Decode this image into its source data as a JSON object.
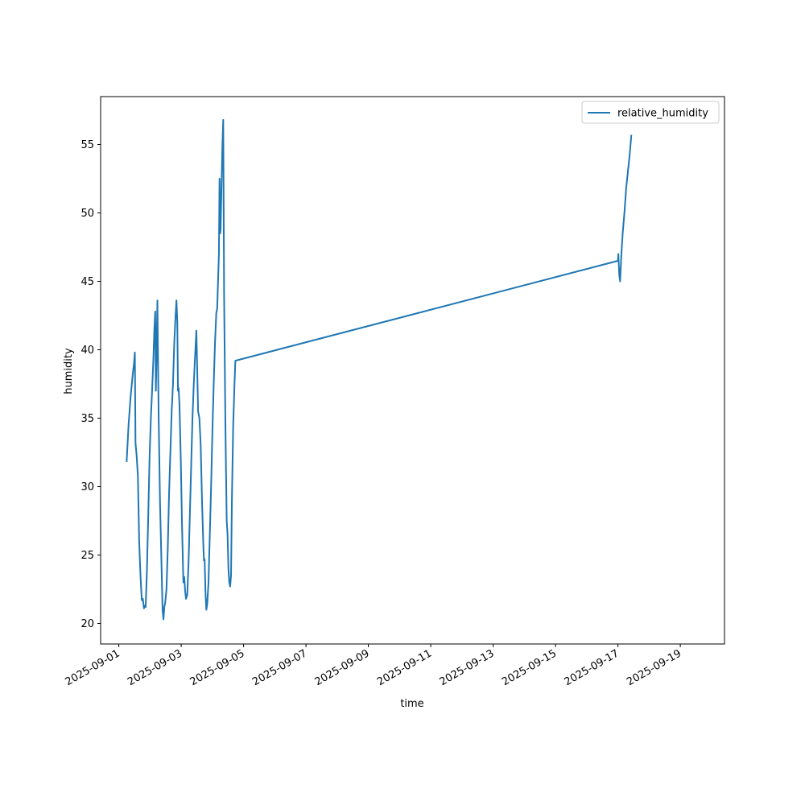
{
  "chart_data": {
    "type": "line",
    "title": "",
    "xlabel": "time",
    "ylabel": "humidity",
    "xlim": [
      "2025-08-31T10:00",
      "2025-09-20T10:00"
    ],
    "ylim": [
      18.5,
      58.5
    ],
    "grid": false,
    "legend": {
      "placement": "top-right"
    },
    "x_ticks": [
      "2025-09-01",
      "2025-09-03",
      "2025-09-05",
      "2025-09-07",
      "2025-09-09",
      "2025-09-11",
      "2025-09-13",
      "2025-09-15",
      "2025-09-17",
      "2025-09-19"
    ],
    "y_ticks": [
      20,
      25,
      30,
      35,
      40,
      45,
      50,
      55
    ],
    "series": [
      {
        "name": "relative_humidity",
        "color": "#1f77b4",
        "points": [
          [
            "2025-09-01T06:00",
            31.8
          ],
          [
            "2025-09-01T07:30",
            34.5
          ],
          [
            "2025-09-01T09:00",
            36.5
          ],
          [
            "2025-09-01T10:30",
            38.0
          ],
          [
            "2025-09-01T11:40",
            39.0
          ],
          [
            "2025-09-01T12:20",
            39.8
          ],
          [
            "2025-09-01T12:50",
            33.2
          ],
          [
            "2025-09-01T13:40",
            32.3
          ],
          [
            "2025-09-01T14:40",
            30.8
          ],
          [
            "2025-09-01T15:40",
            26.0
          ],
          [
            "2025-09-01T16:40",
            23.5
          ],
          [
            "2025-09-01T17:40",
            21.7
          ],
          [
            "2025-09-01T18:30",
            21.8
          ],
          [
            "2025-09-01T19:20",
            21.1
          ],
          [
            "2025-09-01T20:00",
            21.3
          ],
          [
            "2025-09-01T20:40",
            21.2
          ],
          [
            "2025-09-01T21:40",
            24.0
          ],
          [
            "2025-09-01T22:40",
            28.0
          ],
          [
            "2025-09-01T23:40",
            32.2
          ],
          [
            "2025-09-02T00:40",
            35.0
          ],
          [
            "2025-09-02T01:40",
            37.2
          ],
          [
            "2025-09-02T02:40",
            39.5
          ],
          [
            "2025-09-02T03:20",
            41.5
          ],
          [
            "2025-09-02T04:00",
            42.8
          ],
          [
            "2025-09-02T04:30",
            37.0
          ],
          [
            "2025-09-02T05:00",
            39.5
          ],
          [
            "2025-09-02T05:40",
            43.6
          ],
          [
            "2025-09-02T06:40",
            35.0
          ],
          [
            "2025-09-02T07:40",
            29.0
          ],
          [
            "2025-09-02T08:40",
            25.0
          ],
          [
            "2025-09-02T09:40",
            21.0
          ],
          [
            "2025-09-02T10:20",
            20.3
          ],
          [
            "2025-09-02T11:00",
            21.2
          ],
          [
            "2025-09-02T11:40",
            21.5
          ],
          [
            "2025-09-02T12:40",
            22.5
          ],
          [
            "2025-09-02T13:40",
            25.5
          ],
          [
            "2025-09-02T14:40",
            29.5
          ],
          [
            "2025-09-02T15:40",
            32.5
          ],
          [
            "2025-09-02T16:40",
            35.5
          ],
          [
            "2025-09-02T17:40",
            37.5
          ],
          [
            "2025-09-02T18:40",
            40.5
          ],
          [
            "2025-09-02T19:40",
            42.5
          ],
          [
            "2025-09-02T20:20",
            43.6
          ],
          [
            "2025-09-02T21:00",
            42.0
          ],
          [
            "2025-09-02T21:30",
            37.0
          ],
          [
            "2025-09-02T22:00",
            37.2
          ],
          [
            "2025-09-02T22:40",
            36.0
          ],
          [
            "2025-09-02T23:40",
            32.0
          ],
          [
            "2025-09-03T00:40",
            27.0
          ],
          [
            "2025-09-03T01:40",
            23.0
          ],
          [
            "2025-09-03T02:20",
            23.4
          ],
          [
            "2025-09-03T03:00",
            22.4
          ],
          [
            "2025-09-03T03:40",
            21.8
          ],
          [
            "2025-09-03T04:40",
            22.1
          ],
          [
            "2025-09-03T05:40",
            24.5
          ],
          [
            "2025-09-03T06:40",
            28.0
          ],
          [
            "2025-09-03T07:40",
            31.5
          ],
          [
            "2025-09-03T08:40",
            35.0
          ],
          [
            "2025-09-03T09:40",
            37.5
          ],
          [
            "2025-09-03T10:40",
            39.5
          ],
          [
            "2025-09-03T11:40",
            41.4
          ],
          [
            "2025-09-03T12:20",
            38.5
          ],
          [
            "2025-09-03T13:00",
            35.5
          ],
          [
            "2025-09-03T14:00",
            35.0
          ],
          [
            "2025-09-03T15:00",
            33.0
          ],
          [
            "2025-09-03T16:00",
            29.0
          ],
          [
            "2025-09-03T17:00",
            25.8
          ],
          [
            "2025-09-03T17:30",
            24.6
          ],
          [
            "2025-09-03T18:00",
            24.7
          ],
          [
            "2025-09-03T18:40",
            22.3
          ],
          [
            "2025-09-03T19:20",
            21.0
          ],
          [
            "2025-09-03T20:00",
            21.4
          ],
          [
            "2025-09-03T21:00",
            23.0
          ],
          [
            "2025-09-03T22:00",
            26.5
          ],
          [
            "2025-09-03T23:00",
            30.0
          ],
          [
            "2025-09-04T00:00",
            34.0
          ],
          [
            "2025-09-04T01:00",
            37.5
          ],
          [
            "2025-09-04T02:00",
            40.5
          ],
          [
            "2025-09-04T03:00",
            42.7
          ],
          [
            "2025-09-04T03:40",
            43.0
          ],
          [
            "2025-09-04T04:20",
            45.0
          ],
          [
            "2025-09-04T05:00",
            47.0
          ],
          [
            "2025-09-04T05:30",
            52.5
          ],
          [
            "2025-09-04T06:00",
            48.5
          ],
          [
            "2025-09-04T06:20",
            48.8
          ],
          [
            "2025-09-04T07:00",
            52.0
          ],
          [
            "2025-09-04T07:40",
            54.8
          ],
          [
            "2025-09-04T08:20",
            56.8
          ],
          [
            "2025-09-04T09:00",
            44.0
          ],
          [
            "2025-09-04T10:00",
            34.5
          ],
          [
            "2025-09-04T11:00",
            27.5
          ],
          [
            "2025-09-04T11:40",
            26.5
          ],
          [
            "2025-09-04T12:20",
            24.0
          ],
          [
            "2025-09-04T13:00",
            23.0
          ],
          [
            "2025-09-04T13:40",
            22.7
          ],
          [
            "2025-09-04T14:20",
            23.5
          ],
          [
            "2025-09-04T15:00",
            29.0
          ],
          [
            "2025-09-04T16:00",
            34.5
          ],
          [
            "2025-09-04T17:00",
            37.5
          ],
          [
            "2025-09-04T17:40",
            39.2
          ],
          [
            "2025-09-17T00:00",
            46.5
          ],
          [
            "2025-09-17T00:20",
            47.0
          ],
          [
            "2025-09-17T01:00",
            45.5
          ],
          [
            "2025-09-17T01:40",
            45.0
          ],
          [
            "2025-09-17T02:40",
            47.0
          ],
          [
            "2025-09-17T03:40",
            48.5
          ],
          [
            "2025-09-17T05:00",
            50.0
          ],
          [
            "2025-09-17T06:20",
            51.8
          ],
          [
            "2025-09-17T07:40",
            53.0
          ],
          [
            "2025-09-17T09:00",
            54.2
          ],
          [
            "2025-09-17T10:20",
            55.7
          ]
        ]
      }
    ]
  }
}
